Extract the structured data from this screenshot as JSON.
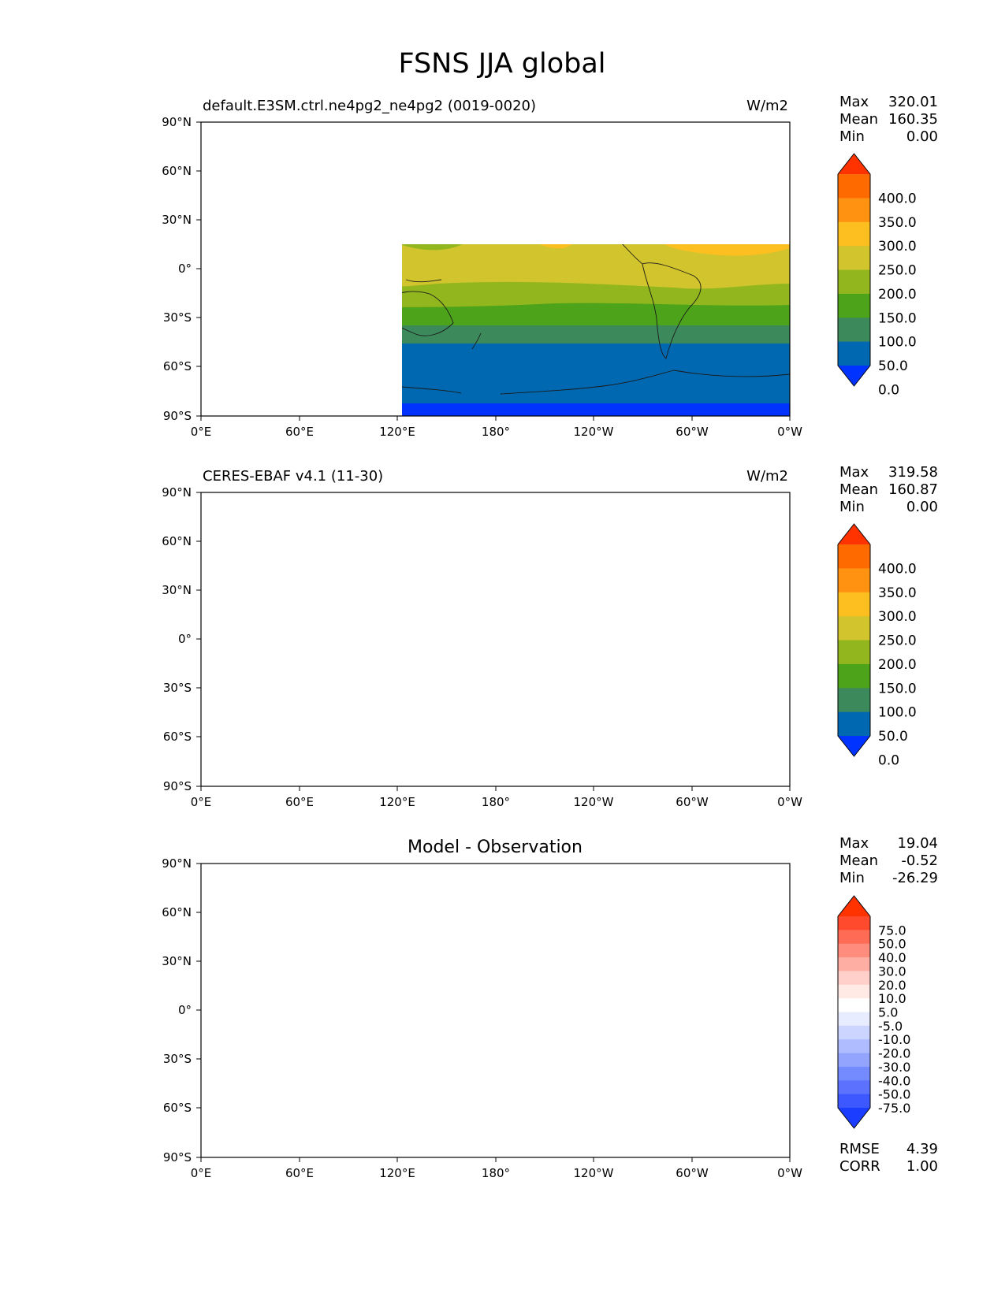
{
  "figure": {
    "title": "FSNS JJA global"
  },
  "panels": [
    {
      "left_title": "default.E3SM.ctrl.ne4pg2_ne4pg2 (0019-0020)",
      "center_title": "",
      "units": "W/m2",
      "stats": [
        {
          "label": "Max",
          "value": "320.01"
        },
        {
          "label": "Mean",
          "value": "160.35"
        },
        {
          "label": "Min",
          "value": "0.00"
        }
      ],
      "colorbar_type": "abs"
    },
    {
      "left_title": "CERES-EBAF v4.1 (11-30)",
      "center_title": "",
      "units": "W/m2",
      "stats": [
        {
          "label": "Max",
          "value": "319.58"
        },
        {
          "label": "Mean",
          "value": "160.87"
        },
        {
          "label": "Min",
          "value": "0.00"
        }
      ],
      "colorbar_type": "abs"
    },
    {
      "left_title": "",
      "center_title": "Model - Observation",
      "units": "",
      "stats": [
        {
          "label": "Max",
          "value": "19.04"
        },
        {
          "label": "Mean",
          "value": "-0.52"
        },
        {
          "label": "Min",
          "value": "-26.29"
        }
      ],
      "extra_stats": [
        {
          "label": "RMSE",
          "value": "4.39"
        },
        {
          "label": "CORR",
          "value": "1.00"
        }
      ],
      "colorbar_type": "diff"
    }
  ],
  "axes": {
    "lat_ticks": [
      "90°N",
      "60°N",
      "30°N",
      "0°",
      "30°S",
      "60°S",
      "90°S"
    ],
    "lon_ticks": [
      "0°E",
      "60°E",
      "120°E",
      "180°",
      "120°W",
      "60°W",
      "0°W"
    ]
  },
  "colorbars": {
    "abs": {
      "labels": [
        "400.0",
        "350.0",
        "300.0",
        "250.0",
        "200.0",
        "150.0",
        "100.0",
        "50.0",
        "0.0"
      ],
      "colors": [
        "#ff3300",
        "#ff6a00",
        "#ff9210",
        "#fdbe20",
        "#d2c42c",
        "#92b71e",
        "#4da319",
        "#3c8a5c",
        "#0068b0",
        "#0033ff"
      ]
    },
    "diff": {
      "labels": [
        "75.0",
        "50.0",
        "40.0",
        "30.0",
        "20.0",
        "10.0",
        "5.0",
        "-5.0",
        "-10.0",
        "-20.0",
        "-30.0",
        "-40.0",
        "-50.0",
        "-75.0"
      ],
      "colors": [
        "#ff3300",
        "#ff4a2e",
        "#ff6b55",
        "#ff8c7c",
        "#ffaea4",
        "#ffcfc9",
        "#ffeae6",
        "#ffffff",
        "#e8ecff",
        "#ccd5ff",
        "#afbcff",
        "#93a4ff",
        "#748aff",
        "#5c72ff",
        "#3d58ff",
        "#1a3dff"
      ]
    }
  },
  "map_data": {
    "type": "filled-contour-map",
    "projection": "PlateCarree",
    "variable": "FSNS",
    "season": "JJA",
    "units": "W/m2",
    "lat_range": [
      -90,
      90
    ],
    "lon_range": [
      0,
      360
    ],
    "contour_levels_abs": [
      0,
      50,
      100,
      150,
      200,
      250,
      300,
      350,
      400
    ],
    "contour_levels_diff": [
      -75,
      -50,
      -40,
      -30,
      -20,
      -10,
      -5,
      5,
      10,
      20,
      30,
      40,
      50,
      75
    ]
  }
}
